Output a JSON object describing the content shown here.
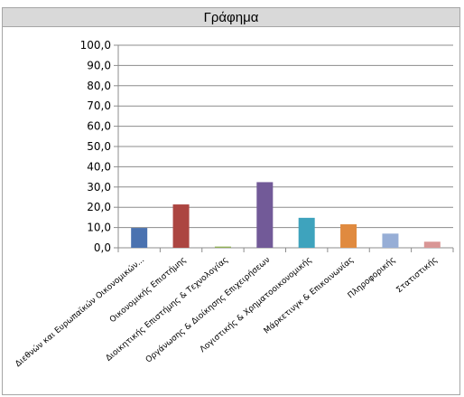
{
  "chart_data": {
    "type": "bar",
    "title": "Γράφημα",
    "categories": [
      "Διεθνών και Ευρωπαϊκών Οικονομικών...",
      "Οικονομικής Επιστήμης",
      "Διοικητικής Επιστήμης & Τεχνολογίας",
      "Οργάνωσης & Διοίκησης Επιχειρήσεων",
      "Λογιστικής & Χρηματοοικονομικής",
      "Μάρκετινγκ & Επικοινωνίας",
      "Πληροφορικής",
      "Στατιστικής"
    ],
    "values": [
      9.8,
      21.4,
      0.6,
      32.4,
      14.8,
      11.6,
      7.0,
      3.0
    ],
    "colors": [
      "#4a72b0",
      "#ac4541",
      "#8fae55",
      "#725a98",
      "#3ea3bd",
      "#e08a3f",
      "#97aed6",
      "#d99695"
    ],
    "ylim": [
      0,
      100
    ],
    "yticks": [
      "0,0",
      "10,0",
      "20,0",
      "30,0",
      "40,0",
      "50,0",
      "60,0",
      "70,0",
      "80,0",
      "90,0",
      "100,0"
    ],
    "grid": true,
    "legend": "none",
    "xlabel": "",
    "ylabel": ""
  }
}
